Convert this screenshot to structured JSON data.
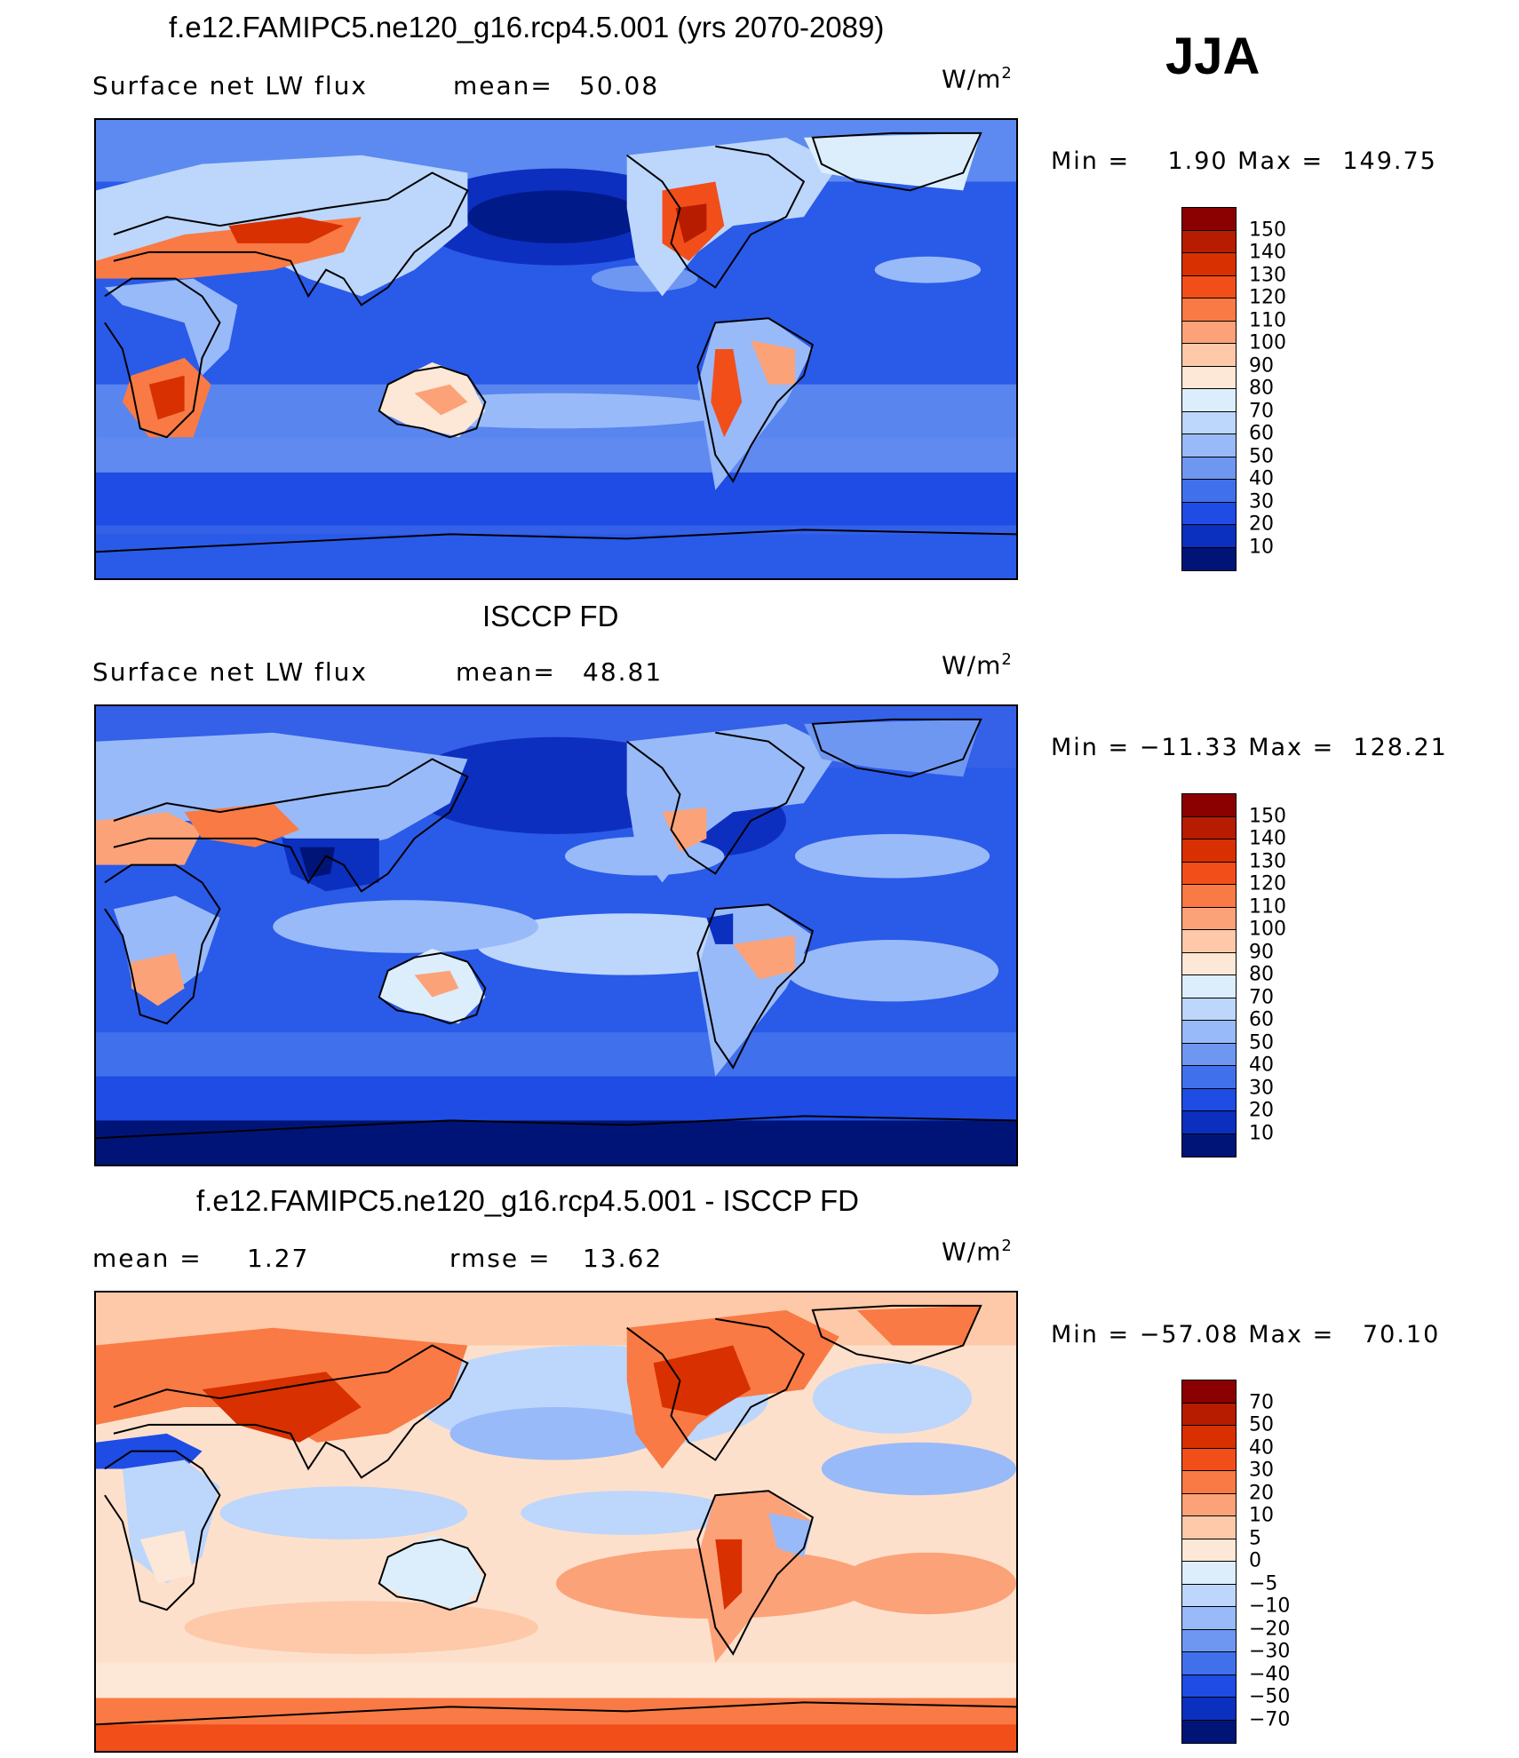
{
  "season": "JJA",
  "panels": [
    {
      "title": "f.e12.FAMIPC5.ne120_g16.rcp4.5.001 (yrs 2070-2089)",
      "left_label": "Surface net LW flux",
      "stat1_label": "mean=",
      "stat1_value": "50.08",
      "stat2_label": "",
      "stat2_value": "",
      "units": "W/m",
      "units_exp": "2",
      "minmax": "Min =    1.90 Max =  149.75",
      "colorbar": {
        "labels": [
          "150",
          "140",
          "130",
          "120",
          "110",
          "100",
          "90",
          "80",
          "70",
          "60",
          "50",
          "40",
          "30",
          "20",
          "10"
        ],
        "colors": [
          "#8b0000",
          "#b71c00",
          "#d83000",
          "#f24e1a",
          "#f97a44",
          "#fca278",
          "#fdc9a8",
          "#fde7d6",
          "#dceefc",
          "#bdd6fc",
          "#98baf8",
          "#6e97f2",
          "#4170ec",
          "#1e4ce4",
          "#0b2fbf",
          "#001478"
        ]
      }
    },
    {
      "title": "ISCCP FD",
      "left_label": "Surface net LW flux",
      "stat1_label": "mean=",
      "stat1_value": "48.81",
      "stat2_label": "",
      "stat2_value": "",
      "units": "W/m",
      "units_exp": "2",
      "minmax": "Min = −11.33 Max =  128.21",
      "colorbar": {
        "labels": [
          "150",
          "140",
          "130",
          "120",
          "110",
          "100",
          "90",
          "80",
          "70",
          "60",
          "50",
          "40",
          "30",
          "20",
          "10"
        ],
        "colors": [
          "#8b0000",
          "#b71c00",
          "#d83000",
          "#f24e1a",
          "#f97a44",
          "#fca278",
          "#fdc9a8",
          "#fde7d6",
          "#dceefc",
          "#bdd6fc",
          "#98baf8",
          "#6e97f2",
          "#4170ec",
          "#1e4ce4",
          "#0b2fbf",
          "#001478"
        ]
      }
    },
    {
      "title": "f.e12.FAMIPC5.ne120_g16.rcp4.5.001 - ISCCP FD",
      "left_label": "mean =",
      "stat1_label": "",
      "stat1_value": "1.27",
      "stat2_label": "rmse =",
      "stat2_value": "13.62",
      "units": "W/m",
      "units_exp": "2",
      "minmax": "Min = −57.08 Max =   70.10",
      "colorbar": {
        "labels": [
          "70",
          "50",
          "40",
          "30",
          "20",
          "10",
          "5",
          "0",
          "−5",
          "−10",
          "−20",
          "−30",
          "−40",
          "−50",
          "−70"
        ],
        "colors": [
          "#8b0000",
          "#b71c00",
          "#d83000",
          "#f24e1a",
          "#f97a44",
          "#fca278",
          "#fdc9a8",
          "#fde7d6",
          "#dceefc",
          "#bdd6fc",
          "#98baf8",
          "#6e97f2",
          "#4170ec",
          "#1e4ce4",
          "#0b2fbf",
          "#001478"
        ]
      }
    }
  ]
}
